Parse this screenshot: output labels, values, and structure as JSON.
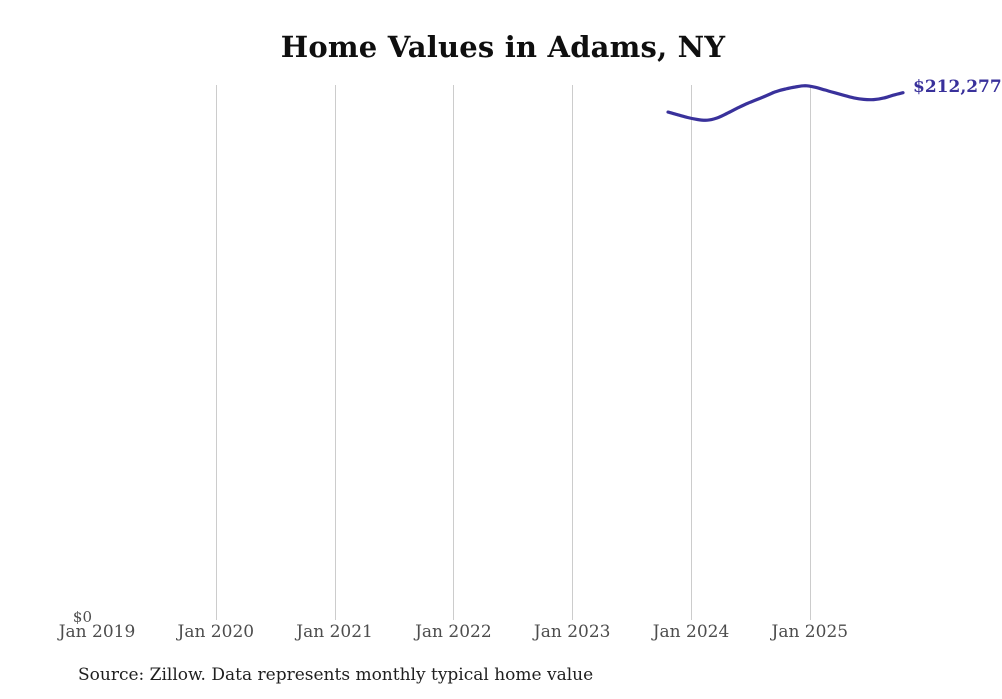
{
  "chart": {
    "title": "Home Values in Adams, NY",
    "y_zero_label": "$0",
    "last_value_label": "$212,277",
    "source_note": "Source: Zillow. Data represents monthly typical home value",
    "colors": {
      "line": "#39319b",
      "gridline": "#cccccc",
      "axis_label": "#4d4d4d",
      "title": "#0f0f0f",
      "source": "#1f1f1f"
    },
    "x_ticks": [
      {
        "label": "Jan 2019",
        "year": 2019,
        "gridline": false
      },
      {
        "label": "Jan 2020",
        "year": 2020,
        "gridline": true
      },
      {
        "label": "Jan 2021",
        "year": 2021,
        "gridline": true
      },
      {
        "label": "Jan 2022",
        "year": 2022,
        "gridline": true
      },
      {
        "label": "Jan 2023",
        "year": 2023,
        "gridline": true
      },
      {
        "label": "Jan 2024",
        "year": 2024,
        "gridline": true
      },
      {
        "label": "Jan 2025",
        "year": 2025,
        "gridline": true
      }
    ]
  },
  "chart_data": {
    "type": "line",
    "title": "Home Values in Adams, NY",
    "x": [
      "Oct 2023",
      "Nov 2023",
      "Dec 2023",
      "Jan 2024",
      "Feb 2024",
      "Mar 2024",
      "Apr 2024",
      "May 2024",
      "Jun 2024",
      "Jul 2024",
      "Aug 2024",
      "Sep 2024",
      "Oct 2024",
      "Nov 2024",
      "Dec 2024",
      "Jan 2025",
      "Feb 2025",
      "Mar 2025",
      "Apr 2025",
      "May 2025",
      "Jun 2025",
      "Jul 2025",
      "Aug 2025",
      "Sep 2025",
      "Oct 2025"
    ],
    "series": [
      {
        "name": "Monthly typical home value",
        "values": [
          204500,
          203400,
          202300,
          201500,
          201200,
          202100,
          203900,
          205900,
          207800,
          209400,
          211000,
          212700,
          213800,
          214600,
          215100,
          214500,
          213400,
          212300,
          211200,
          210200,
          209600,
          209500,
          210100,
          211300,
          212277
        ]
      }
    ],
    "x_axis_tick_labels": [
      "Jan 2019",
      "Jan 2020",
      "Jan 2021",
      "Jan 2022",
      "Jan 2023",
      "Jan 2024",
      "Jan 2025"
    ],
    "y_axis_tick_labels": [
      "$0"
    ],
    "ylim": [
      0,
      230000
    ],
    "xlabel": "",
    "ylabel": "",
    "grid": "vertical-yearly",
    "legend": "none",
    "annotation": {
      "text": "$212,277",
      "position": "line-end"
    },
    "source": "Source: Zillow. Data represents monthly typical home value"
  }
}
